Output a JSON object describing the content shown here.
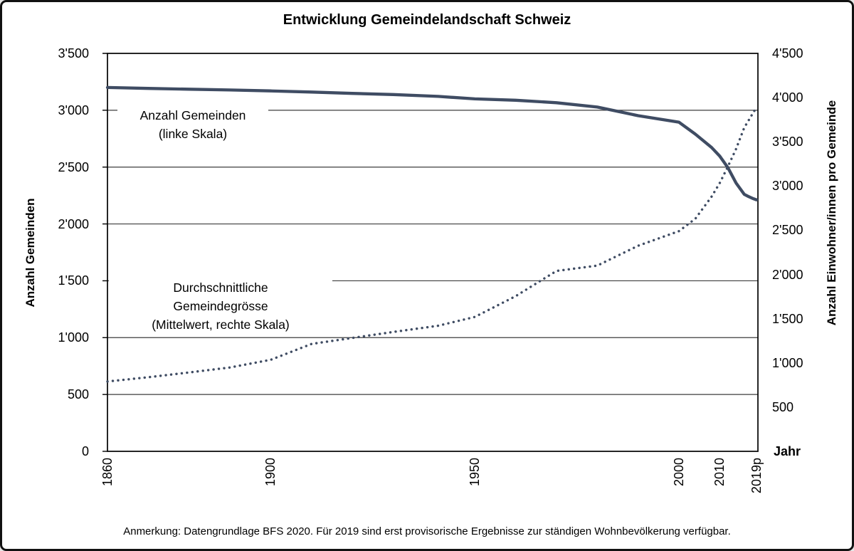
{
  "title": "Entwicklung Gemeindelandschaft Schweiz",
  "note": "Anmerkung: Datengrundlage BFS 2020. Für 2019 sind erst provisorische Ergebnisse zur ständigen Wohnbevölkerung verfügbar.",
  "colors": {
    "series": "#3F4C63",
    "grid": "#3d3d3d",
    "axis": "#000000",
    "background": "#ffffff"
  },
  "annotations": {
    "gemeinden": [
      "Anzahl Gemeinden",
      "(linke Skala)"
    ],
    "groesse": [
      "Durchschnittliche",
      "Gemeindegrösse",
      "(Mittelwert, rechte Skala)"
    ]
  },
  "chart_data": {
    "type": "line",
    "title": "Entwicklung Gemeindelandschaft Schweiz",
    "grid": "horizontal",
    "xlim": [
      1860,
      2019
    ],
    "ylim_left": [
      0,
      3500
    ],
    "ylim_right": [
      0,
      4500
    ],
    "axes": {
      "left_title": "Anzahl Gemeinden",
      "right_title": "Anzahl Einwohner/innen pro Gemeinde",
      "x_title": "Jahr",
      "left_ticks": [
        {
          "label": "3'500",
          "value": 3500
        },
        {
          "label": "3'000",
          "value": 3000
        },
        {
          "label": "2'500",
          "value": 2500
        },
        {
          "label": "2'000",
          "value": 2000
        },
        {
          "label": "1'500",
          "value": 1500
        },
        {
          "label": "1'000",
          "value": 1000
        },
        {
          "label": "500",
          "value": 500
        },
        {
          "label": "0",
          "value": 0
        }
      ],
      "right_ticks": [
        {
          "label": "4'500",
          "value": 4500
        },
        {
          "label": "4'000",
          "value": 4000
        },
        {
          "label": "3'500",
          "value": 3500
        },
        {
          "label": "3'000",
          "value": 3000
        },
        {
          "label": "2'500",
          "value": 2500
        },
        {
          "label": "2'000",
          "value": 2000
        },
        {
          "label": "1'500",
          "value": 1500
        },
        {
          "label": "1'000",
          "value": 1000
        },
        {
          "label": "500",
          "value": 500
        }
      ],
      "x_ticks": [
        {
          "label": "1860",
          "year": 1860
        },
        {
          "label": "1900",
          "year": 1900
        },
        {
          "label": "1950",
          "year": 1950
        },
        {
          "label": "2000",
          "year": 2000
        },
        {
          "label": "2010",
          "year": 2010
        },
        {
          "label": "2019p",
          "year": 2019
        }
      ]
    },
    "series": [
      {
        "name": "Anzahl Gemeinden (linke Skala)",
        "axis": "left",
        "style": "solid",
        "x": [
          1860,
          1870,
          1880,
          1890,
          1900,
          1910,
          1920,
          1930,
          1941,
          1950,
          1960,
          1970,
          1980,
          1990,
          2000,
          2004,
          2008,
          2010,
          2012,
          2014,
          2016,
          2017,
          2018,
          2019
        ],
        "values": [
          3200,
          3192,
          3185,
          3178,
          3170,
          3160,
          3148,
          3138,
          3122,
          3100,
          3088,
          3066,
          3028,
          2952,
          2895,
          2790,
          2672,
          2596,
          2495,
          2360,
          2260,
          2242,
          2225,
          2212
        ]
      },
      {
        "name": "Durchschnittliche Gemeindegrösse (Mittelwert, rechte Skala)",
        "axis": "right",
        "style": "dotted",
        "x": [
          1860,
          1870,
          1880,
          1890,
          1900,
          1910,
          1920,
          1930,
          1941,
          1950,
          1960,
          1970,
          1980,
          1990,
          2000,
          2004,
          2008,
          2010,
          2012,
          2014,
          2016,
          2018,
          2019
        ],
        "values": [
          790,
          838,
          892,
          948,
          1035,
          1215,
          1282,
          1350,
          1420,
          1520,
          1755,
          2040,
          2100,
          2325,
          2490,
          2630,
          2880,
          3035,
          3220,
          3420,
          3660,
          3815,
          3890
        ]
      }
    ]
  }
}
